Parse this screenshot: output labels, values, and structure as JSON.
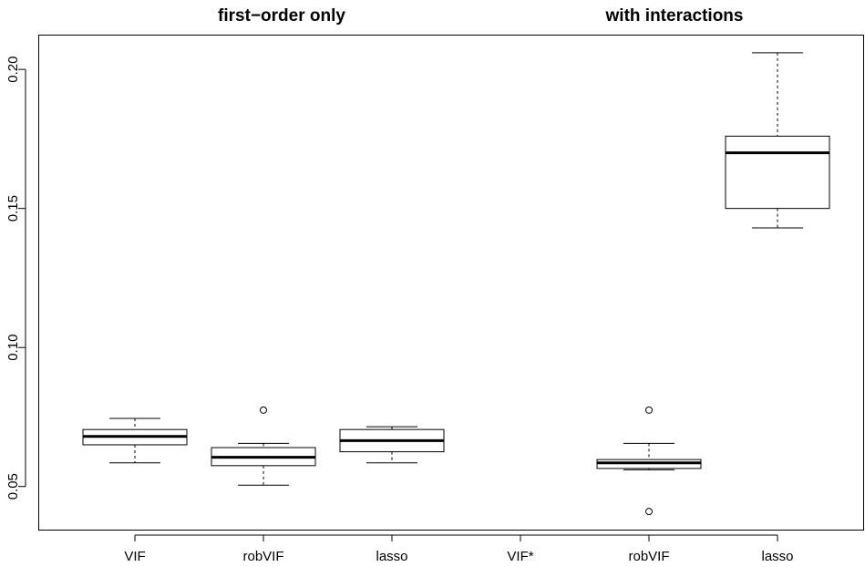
{
  "chart_data": {
    "type": "box",
    "section_titles": [
      "first−order only",
      "with interactions"
    ],
    "categories": [
      "VIF",
      "robVIF",
      "lasso",
      "VIF*",
      "robVIF",
      "lasso"
    ],
    "ylim": [
      0.0345,
      0.2125
    ],
    "yticks": [
      0.05,
      0.1,
      0.15,
      0.2
    ],
    "ytick_labels": [
      "0.05",
      "0.10",
      "0.15",
      "0.20"
    ],
    "grid": false,
    "boxes": [
      {
        "category": "VIF",
        "group": "first-order only",
        "whisker_low": 0.0585,
        "q1": 0.065,
        "median": 0.068,
        "q3": 0.0705,
        "whisker_high": 0.0745,
        "outliers": []
      },
      {
        "category": "robVIF",
        "group": "first-order only",
        "whisker_low": 0.0505,
        "q1": 0.0575,
        "median": 0.0605,
        "q3": 0.064,
        "whisker_high": 0.0655,
        "outliers": [
          0.0775
        ]
      },
      {
        "category": "lasso",
        "group": "first-order only",
        "whisker_low": 0.0585,
        "q1": 0.0625,
        "median": 0.0665,
        "q3": 0.0705,
        "whisker_high": 0.0715,
        "outliers": []
      },
      {
        "category": "VIF*",
        "group": "with interactions",
        "empty": true
      },
      {
        "category": "robVIF",
        "group": "with interactions",
        "whisker_low": 0.056,
        "q1": 0.0565,
        "median": 0.0585,
        "q3": 0.0597,
        "whisker_high": 0.0655,
        "outliers": [
          0.0775,
          0.041
        ]
      },
      {
        "category": "lasso",
        "group": "with interactions",
        "whisker_low": 0.143,
        "q1": 0.15,
        "median": 0.17,
        "q3": 0.176,
        "whisker_high": 0.206,
        "outliers": []
      }
    ]
  }
}
